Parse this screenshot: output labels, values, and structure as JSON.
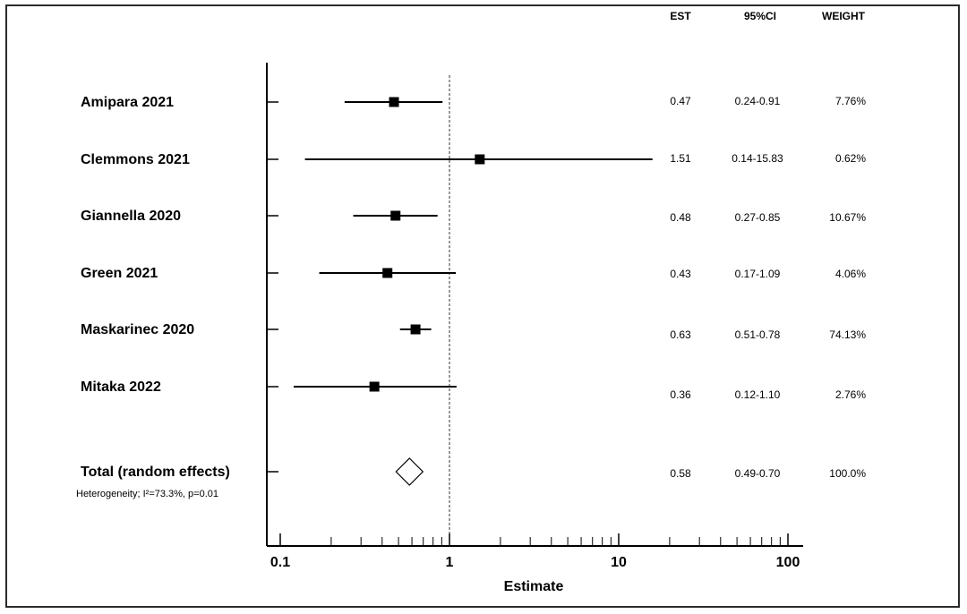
{
  "chart_data": {
    "type": "forest",
    "xscale": "log",
    "xlabel": "Estimate",
    "xlim": [
      0.1,
      100
    ],
    "xticks": [
      "0.1",
      "1",
      "10",
      "100"
    ],
    "reference_line": 1,
    "columns": {
      "est": "EST",
      "ci": "95%CI",
      "weight": "WEIGHT"
    },
    "studies": [
      {
        "name": "Amipara 2021",
        "est": 0.47,
        "lo": 0.24,
        "hi": 0.91,
        "est_label": "0.47",
        "ci_label": "0.24-0.91",
        "weight_label": "7.76%"
      },
      {
        "name": "Clemmons 2021",
        "est": 1.51,
        "lo": 0.14,
        "hi": 15.83,
        "est_label": "1.51",
        "ci_label": "0.14-15.83",
        "weight_label": "0.62%"
      },
      {
        "name": "Giannella 2020",
        "est": 0.48,
        "lo": 0.27,
        "hi": 0.85,
        "est_label": "0.48",
        "ci_label": "0.27-0.85",
        "weight_label": "10.67%"
      },
      {
        "name": "Green 2021",
        "est": 0.43,
        "lo": 0.17,
        "hi": 1.09,
        "est_label": "0.43",
        "ci_label": "0.17-1.09",
        "weight_label": "4.06%"
      },
      {
        "name": "Maskarinec 2020",
        "est": 0.63,
        "lo": 0.51,
        "hi": 0.78,
        "est_label": "0.63",
        "ci_label": "0.51-0.78",
        "weight_label": "74.13%"
      },
      {
        "name": "Mitaka 2022",
        "est": 0.36,
        "lo": 0.12,
        "hi": 1.1,
        "est_label": "0.36",
        "ci_label": "0.12-1.10",
        "weight_label": "2.76%"
      }
    ],
    "total": {
      "name": "Total (random effects)",
      "est": 0.58,
      "lo": 0.49,
      "hi": 0.7,
      "est_label": "0.58",
      "ci_label": "0.49-0.70",
      "weight_label": "100.0%",
      "heterogeneity": "Heterogeneity; I²=73.3%, p=0.01"
    }
  }
}
